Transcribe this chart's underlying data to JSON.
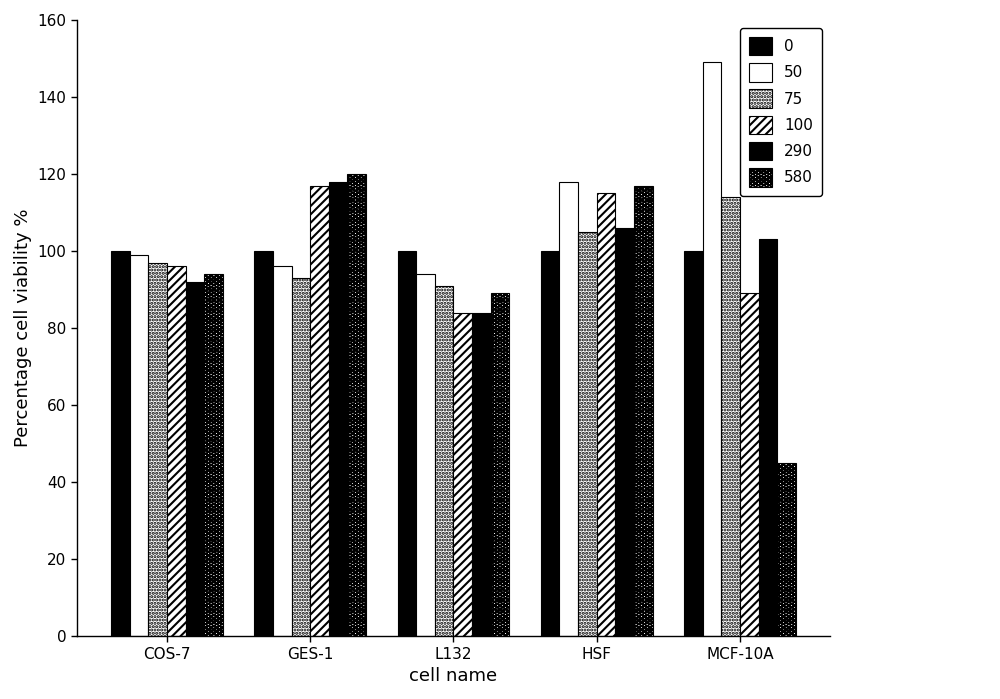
{
  "categories": [
    "COS-7",
    "GES-1",
    "L132",
    "HSF",
    "MCF-10A"
  ],
  "series_labels": [
    "0",
    "50",
    "75",
    "100",
    "290",
    "580"
  ],
  "values": {
    "0": [
      100,
      100,
      100,
      100,
      100
    ],
    "50": [
      99,
      96,
      94,
      118,
      149
    ],
    "75": [
      97,
      93,
      91,
      105,
      114
    ],
    "100": [
      96,
      117,
      84,
      115,
      89
    ],
    "290": [
      92,
      118,
      84,
      106,
      103
    ],
    "580": [
      94,
      120,
      89,
      117,
      45
    ]
  },
  "ylabel": "Percentage cell viability %",
  "xlabel": "cell name",
  "ylim": [
    0,
    160
  ],
  "yticks": [
    0,
    20,
    40,
    60,
    80,
    100,
    120,
    140,
    160
  ],
  "bar_width": 0.13,
  "axis_fontsize": 13,
  "tick_fontsize": 11,
  "legend_fontsize": 11
}
